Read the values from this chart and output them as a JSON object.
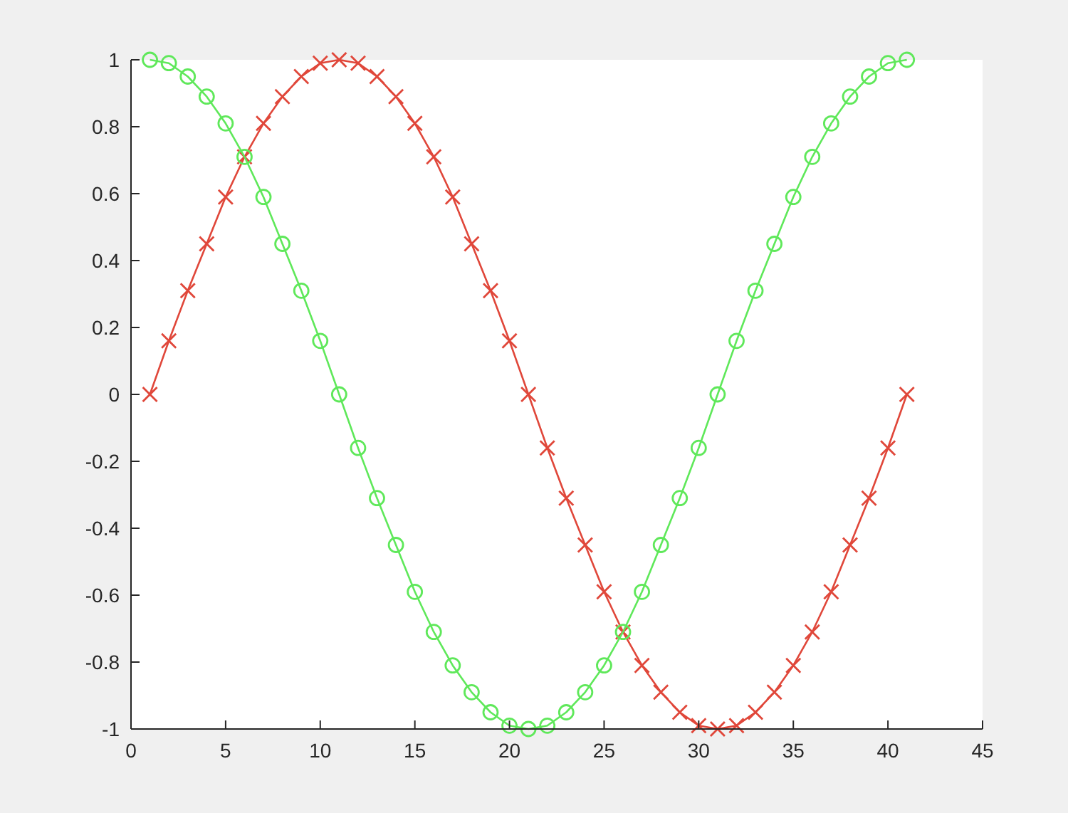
{
  "chart_data": {
    "type": "line",
    "xlim": [
      0,
      45
    ],
    "xticks": [
      0,
      5,
      10,
      15,
      20,
      25,
      30,
      35,
      40,
      45
    ],
    "ylim": [
      -1,
      1
    ],
    "yticks": [
      -1,
      -0.8,
      -0.6,
      -0.4,
      -0.2,
      0,
      0.2,
      0.4,
      0.6,
      0.8,
      1
    ],
    "grid": false,
    "x": [
      1,
      2,
      3,
      4,
      5,
      6,
      7,
      8,
      9,
      10,
      11,
      12,
      13,
      14,
      15,
      16,
      17,
      18,
      19,
      20,
      21,
      22,
      23,
      24,
      25,
      26,
      27,
      28,
      29,
      30,
      31,
      32,
      33,
      34,
      35,
      36,
      37,
      38,
      39,
      40,
      41
    ],
    "series": [
      {
        "color": "#e0473a",
        "marker": "cross",
        "values": [
          0,
          0.16,
          0.31,
          0.45,
          0.59,
          0.71,
          0.81,
          0.89,
          0.95,
          0.99,
          1,
          0.99,
          0.95,
          0.89,
          0.81,
          0.71,
          0.59,
          0.45,
          0.31,
          0.16,
          0,
          -0.16,
          -0.31,
          -0.45,
          -0.59,
          -0.71,
          -0.81,
          -0.89,
          -0.95,
          -0.99,
          -1,
          -0.99,
          -0.95,
          -0.89,
          -0.81,
          -0.71,
          -0.59,
          -0.45,
          -0.31,
          -0.16,
          0
        ]
      },
      {
        "color": "#5fe85a",
        "marker": "circle",
        "values": [
          1,
          0.99,
          0.95,
          0.89,
          0.81,
          0.71,
          0.59,
          0.45,
          0.31,
          0.16,
          0,
          -0.16,
          -0.31,
          -0.45,
          -0.59,
          -0.71,
          -0.81,
          -0.89,
          -0.95,
          -0.99,
          -1,
          -0.99,
          -0.95,
          -0.89,
          -0.81,
          -0.71,
          -0.59,
          -0.45,
          -0.31,
          -0.16,
          0,
          0.16,
          0.31,
          0.45,
          0.59,
          0.71,
          0.81,
          0.89,
          0.95,
          0.99,
          1
        ]
      }
    ]
  }
}
